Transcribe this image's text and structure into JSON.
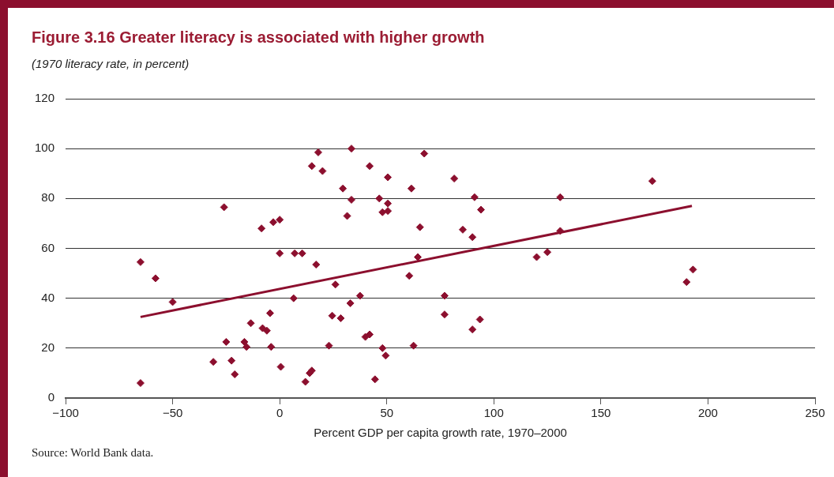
{
  "chart_data": {
    "type": "scatter",
    "title": "Figure 3.16  Greater literacy is associated with higher growth",
    "subtitle": "(1970 literacy rate, in percent)",
    "xlabel": "Percent GDP per capita growth rate, 1970–2000",
    "annotations": [
      "Source: World Bank data."
    ],
    "xlim": [
      -100,
      250
    ],
    "xticks": [
      {
        "value": -100,
        "label": "−100"
      },
      {
        "value": -50,
        "label": "−50"
      },
      0,
      50,
      100,
      150,
      200,
      250
    ],
    "ylim": [
      0,
      120
    ],
    "yticks": [
      0,
      20,
      40,
      60,
      80,
      100,
      120
    ],
    "grid": "y",
    "legend": false,
    "series": [
      {
        "marker": "diamond",
        "color": "#8c0f2e",
        "x": [
          -65,
          -58,
          -50,
          -65,
          -26,
          -31,
          -25,
          -22.5,
          -21,
          -16.5,
          -15.5,
          -13.5,
          -8.5,
          -8,
          -6,
          -4.5,
          -4,
          -3,
          0,
          0,
          0.5,
          6.5,
          7,
          10.5,
          12,
          14,
          15,
          15,
          17,
          18,
          20,
          23,
          24.5,
          26,
          28.5,
          29.5,
          31.5,
          33,
          33.5,
          33.5,
          37.5,
          40,
          42,
          42,
          44.5,
          46.5,
          48,
          48,
          49.5,
          50.5,
          50.5,
          50.5,
          60.5,
          61.5,
          62.5,
          64.5,
          65.5,
          67.5,
          77,
          77,
          81.5,
          85.5,
          90,
          90,
          91,
          93.5,
          94,
          120,
          125,
          131,
          131,
          174,
          190,
          193
        ],
        "values": [
          54.5,
          48,
          38.5,
          6,
          76.5,
          14.5,
          22.5,
          15,
          9.5,
          22.5,
          20.5,
          30,
          68,
          28,
          27,
          34,
          20.5,
          70.5,
          71.5,
          58,
          12.5,
          40,
          58,
          58,
          6.5,
          10,
          11,
          93,
          53.5,
          98.5,
          91,
          21,
          33,
          45.5,
          32,
          84,
          73,
          38,
          100,
          79.5,
          41,
          24.5,
          25.5,
          93,
          7.5,
          80,
          20,
          74.5,
          17,
          88.5,
          78,
          75,
          49,
          84,
          21,
          56.5,
          68.5,
          98,
          41,
          33.5,
          88,
          67.5,
          27.5,
          64.5,
          80.5,
          31.5,
          75.5,
          56.5,
          58.5,
          67,
          80.5,
          87,
          46.5,
          51.5
        ]
      },
      {
        "type": "line",
        "color": "#8c0f2e",
        "x": [
          -65,
          192.5
        ],
        "values": [
          32.5,
          77
        ]
      }
    ]
  }
}
